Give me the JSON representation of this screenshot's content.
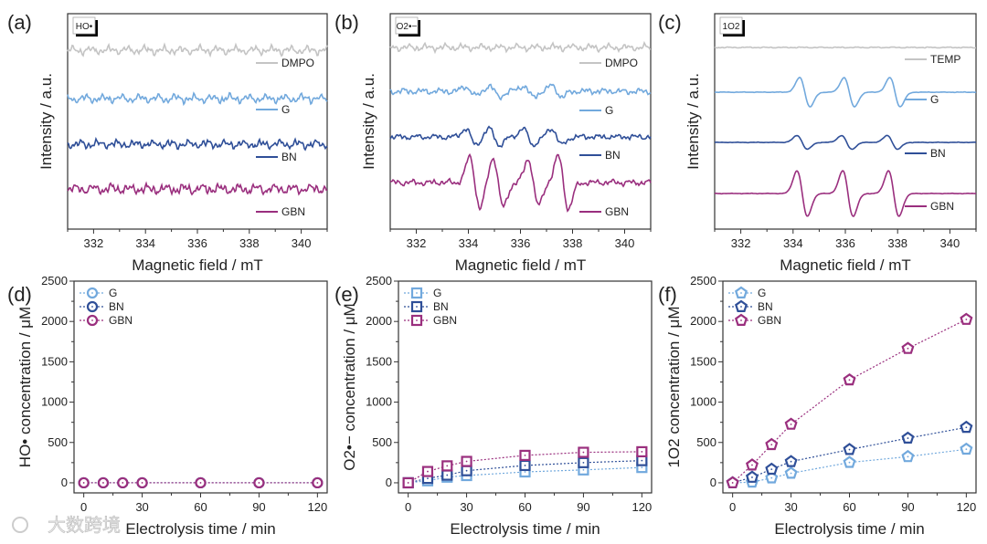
{
  "colors": {
    "DMPO": "#c4c4c4",
    "TEMP": "#c4c4c4",
    "G": "#72a9dd",
    "BN": "#2f4f98",
    "GBN": "#9a2f7e",
    "axis": "#333333"
  },
  "watermark": "大数跨境",
  "chart_data": [
    {
      "panel": "(a)",
      "type": "line",
      "tag": "HO•",
      "xlabel": "Magnetic field / mT",
      "ylabel": "Intensity / a.u.",
      "xlim": [
        331,
        341
      ],
      "xticks": [
        332,
        334,
        336,
        338,
        340
      ],
      "series": [
        {
          "name": "DMPO",
          "peaks": [],
          "noise": 0.5
        },
        {
          "name": "G",
          "peaks": [],
          "noise": 0.5
        },
        {
          "name": "BN",
          "peaks": [],
          "noise": 0.5
        },
        {
          "name": "GBN",
          "peaks": [],
          "noise": 0.6
        }
      ]
    },
    {
      "panel": "(b)",
      "type": "line",
      "tag": "O2•−",
      "xlabel": "Magnetic field / mT",
      "ylabel": "Intensity / a.u.",
      "xlim": [
        331,
        341
      ],
      "xticks": [
        332,
        334,
        336,
        338,
        340
      ],
      "series": [
        {
          "name": "DMPO",
          "peaks": [],
          "noise": 0.4
        },
        {
          "name": "G",
          "peaks": [
            [
              334.1,
              0.5
            ],
            [
              335.0,
              0.6
            ],
            [
              336.3,
              0.6
            ],
            [
              337.4,
              0.6
            ]
          ],
          "noise": 0.35
        },
        {
          "name": "BN",
          "peaks": [
            [
              334.1,
              0.9
            ],
            [
              335.0,
              0.9
            ],
            [
              336.3,
              0.9
            ],
            [
              337.4,
              0.9
            ]
          ],
          "noise": 0.3
        },
        {
          "name": "GBN",
          "peaks": [
            [
              334.25,
              2.8
            ],
            [
              335.15,
              2.7
            ],
            [
              336.5,
              2.5
            ],
            [
              337.65,
              2.9
            ]
          ],
          "noise": 0.35
        }
      ]
    },
    {
      "panel": "(c)",
      "type": "line",
      "tag": "1O2",
      "xlabel": "Magnetic field / mT",
      "ylabel": "Intensity / a.u.",
      "xlim": [
        331,
        341
      ],
      "xticks": [
        332,
        334,
        336,
        338,
        340
      ],
      "series": [
        {
          "name": "TEMP",
          "peaks": [],
          "noise": 0.06
        },
        {
          "name": "G",
          "peaks": [
            [
              334.45,
              1.6
            ],
            [
              336.15,
              1.6
            ],
            [
              337.9,
              1.6
            ]
          ],
          "noise": 0.03
        },
        {
          "name": "BN",
          "peaks": [
            [
              334.35,
              0.75
            ],
            [
              336.05,
              0.75
            ],
            [
              337.8,
              0.75
            ]
          ],
          "noise": 0.03
        },
        {
          "name": "GBN",
          "peaks": [
            [
              334.35,
              2.5
            ],
            [
              336.1,
              2.5
            ],
            [
              337.85,
              2.5
            ]
          ],
          "noise": 0.03
        }
      ]
    },
    {
      "panel": "(d)",
      "type": "scatter",
      "marker": "circle",
      "xlabel": "Electrolysis time / min",
      "ylabel": "HO• concentration / μM",
      "xlim": [
        -5,
        125
      ],
      "ylim": [
        -125,
        2500
      ],
      "xticks": [
        0,
        30,
        60,
        90,
        120
      ],
      "yticks": [
        0,
        500,
        1000,
        1500,
        2000,
        2500
      ],
      "x": [
        0,
        10,
        20,
        30,
        60,
        90,
        120
      ],
      "series": [
        {
          "name": "G",
          "values": [
            0,
            0,
            0,
            0,
            0,
            0,
            0
          ]
        },
        {
          "name": "BN",
          "values": [
            0,
            0,
            0,
            0,
            0,
            0,
            0
          ]
        },
        {
          "name": "GBN",
          "values": [
            0,
            0,
            0,
            0,
            0,
            0,
            0
          ]
        }
      ]
    },
    {
      "panel": "(e)",
      "type": "scatter",
      "marker": "square",
      "xlabel": "Electrolysis time / min",
      "ylabel": "O2•− concentration / μM",
      "xlim": [
        -5,
        125
      ],
      "ylim": [
        -125,
        2500
      ],
      "xticks": [
        0,
        30,
        60,
        90,
        120
      ],
      "yticks": [
        0,
        500,
        1000,
        1500,
        2000,
        2500
      ],
      "x": [
        0,
        10,
        20,
        30,
        60,
        90,
        120
      ],
      "series": [
        {
          "name": "G",
          "values": [
            0,
            25,
            70,
            90,
            135,
            160,
            190
          ]
        },
        {
          "name": "BN",
          "values": [
            0,
            55,
            95,
            150,
            215,
            250,
            275
          ]
        },
        {
          "name": "GBN",
          "values": [
            0,
            140,
            210,
            265,
            340,
            378,
            385
          ]
        }
      ]
    },
    {
      "panel": "(f)",
      "type": "scatter",
      "marker": "pentagon",
      "xlabel": "Electrolysis time / min",
      "ylabel": "1O2 concentration / μM",
      "xlim": [
        -5,
        125
      ],
      "ylim": [
        -125,
        2500
      ],
      "xticks": [
        0,
        30,
        60,
        90,
        120
      ],
      "yticks": [
        0,
        500,
        1000,
        1500,
        2000,
        2500
      ],
      "x": [
        0,
        10,
        20,
        30,
        60,
        90,
        120
      ],
      "series": [
        {
          "name": "G",
          "values": [
            0,
            8,
            60,
            118,
            252,
            324,
            416
          ]
        },
        {
          "name": "BN",
          "values": [
            0,
            68,
            168,
            263,
            412,
            553,
            687
          ]
        },
        {
          "name": "GBN",
          "values": [
            0,
            220,
            473,
            725,
            1275,
            1665,
            2025
          ]
        }
      ]
    }
  ]
}
